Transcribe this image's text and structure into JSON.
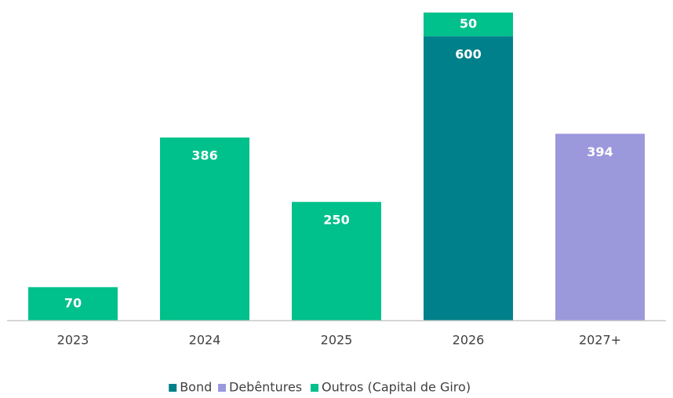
{
  "chart_data": {
    "type": "stacked_bar",
    "categories": [
      "2023",
      "2024",
      "2025",
      "2026",
      "2027+"
    ],
    "series": [
      {
        "name": "Bond",
        "color": "#00808a",
        "values": [
          null,
          null,
          null,
          600,
          null
        ]
      },
      {
        "name": "Debêntures",
        "color": "#9b98dc",
        "values": [
          null,
          null,
          null,
          null,
          394
        ]
      },
      {
        "name": "Outros (Capital de Giro)",
        "color": "#00c08b",
        "values": [
          70,
          386,
          250,
          50,
          null
        ]
      }
    ],
    "legend": "bottom"
  }
}
